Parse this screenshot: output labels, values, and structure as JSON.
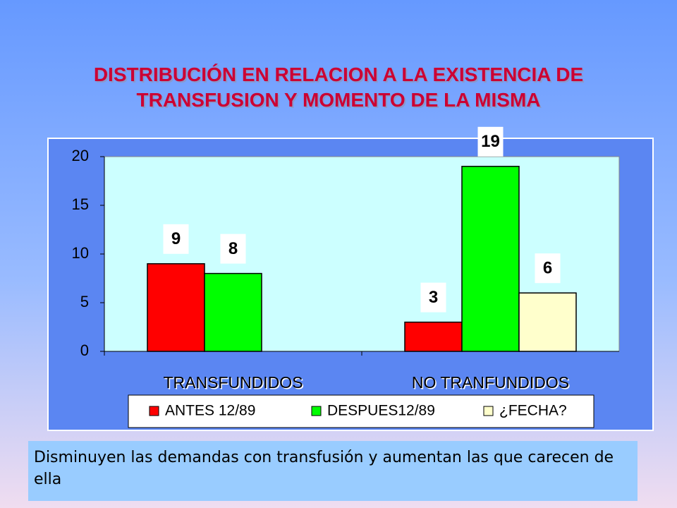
{
  "chart_data": {
    "type": "bar",
    "title": "DISTRIBUCIÓN EN RELACION A LA EXISTENCIA DE TRANSFUSION Y MOMENTO DE LA MISMA",
    "categories": [
      "TRANSFUNDIDOS",
      "NO TRANFUNDIDOS"
    ],
    "series": [
      {
        "name": "ANTES 12/89",
        "color": "#ff0000",
        "values": [
          9,
          3
        ]
      },
      {
        "name": "DESPUES12/89",
        "color": "#00ff00",
        "values": [
          8,
          19
        ]
      },
      {
        "name": "¿FECHA?",
        "color": "#ffffcc",
        "values": [
          null,
          6
        ]
      }
    ],
    "ylim": [
      0,
      20
    ],
    "yticks": [
      0,
      5,
      10,
      15,
      20
    ],
    "legend": "bottom"
  },
  "caption": "Disminuyen las demandas con transfusión y aumentan las que carecen de ella"
}
